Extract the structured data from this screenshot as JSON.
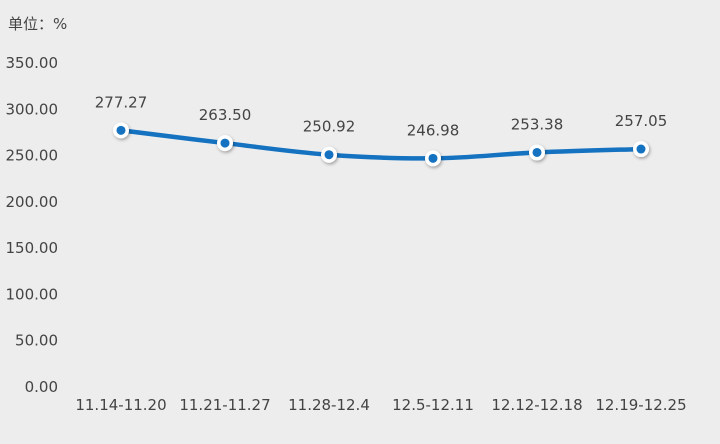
{
  "chart_data": {
    "type": "line",
    "unit_label": "单位：%",
    "categories": [
      "11.14-11.20",
      "11.21-11.27",
      "11.28-12.4",
      "12.5-12.11",
      "12.12-12.18",
      "12.19-12.25"
    ],
    "values": [
      277.27,
      263.5,
      250.92,
      246.98,
      253.38,
      257.05
    ],
    "data_labels": [
      "277.27",
      "263.50",
      "250.92",
      "246.98",
      "253.38",
      "257.05"
    ],
    "y_ticks": [
      "0.00",
      "50.00",
      "100.00",
      "150.00",
      "200.00",
      "250.00",
      "300.00",
      "350.00"
    ],
    "ylim": [
      0,
      350
    ],
    "grid": false,
    "colors": {
      "line": "#1472c0",
      "marker_fill": "#1472c0",
      "marker_ring": "#ffffff",
      "background": "#ededed",
      "text": "#444444"
    }
  }
}
